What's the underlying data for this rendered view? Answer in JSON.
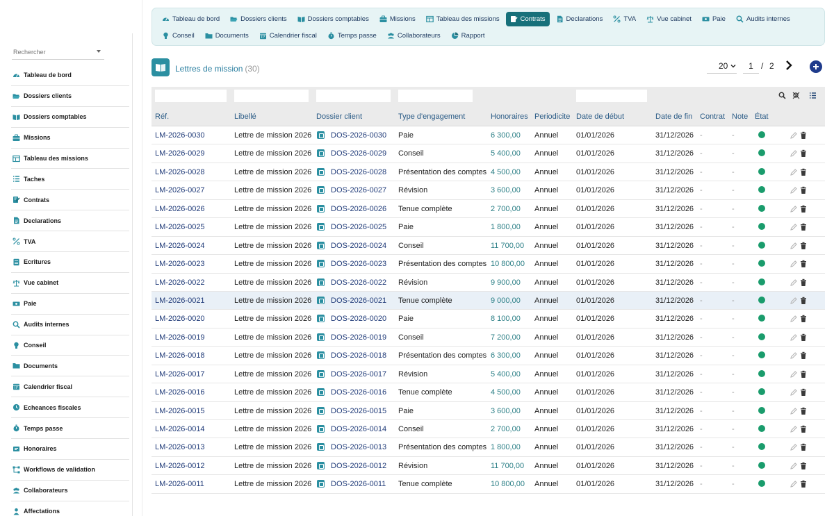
{
  "sidebar": {
    "search_placeholder": "Rechercher",
    "items": [
      {
        "label": "Tableau de bord",
        "icon": "dashboard-icon"
      },
      {
        "label": "Dossiers clients",
        "icon": "folder-open-icon"
      },
      {
        "label": "Dossiers comptables",
        "icon": "book-open-icon"
      },
      {
        "label": "Missions",
        "icon": "briefcase-icon"
      },
      {
        "label": "Tableau des missions",
        "icon": "table-icon"
      },
      {
        "label": "Taches",
        "icon": "list-icon"
      },
      {
        "label": "Contrats",
        "icon": "contract-icon"
      },
      {
        "label": "Declarations",
        "icon": "document-icon"
      },
      {
        "label": "TVA",
        "icon": "percent-icon"
      },
      {
        "label": "Ecritures",
        "icon": "ledger-icon"
      },
      {
        "label": "Vue cabinet",
        "icon": "balance-icon"
      },
      {
        "label": "Paie",
        "icon": "money-icon"
      },
      {
        "label": "Audits internes",
        "icon": "search-icon"
      },
      {
        "label": "Conseil",
        "icon": "lightbulb-icon"
      },
      {
        "label": "Documents",
        "icon": "folder-icon"
      },
      {
        "label": "Calendrier fiscal",
        "icon": "calendar-icon"
      },
      {
        "label": "Echeances fiscales",
        "icon": "clock-icon"
      },
      {
        "label": "Temps passe",
        "icon": "stopwatch-icon"
      },
      {
        "label": "Honoraires",
        "icon": "fee-icon"
      },
      {
        "label": "Workflows de validation",
        "icon": "workflow-icon"
      },
      {
        "label": "Collaborateurs",
        "icon": "users-icon"
      },
      {
        "label": "Affectations",
        "icon": "user-icon"
      }
    ]
  },
  "topnav": {
    "row1": [
      {
        "label": "Tableau de bord",
        "icon": "dashboard-icon",
        "active": false
      },
      {
        "label": "Dossiers clients",
        "icon": "folder-open-icon",
        "active": false
      },
      {
        "label": "Dossiers comptables",
        "icon": "book-open-icon",
        "active": false
      },
      {
        "label": "Missions",
        "icon": "briefcase-icon",
        "active": false
      },
      {
        "label": "Tableau des missions",
        "icon": "table-icon",
        "active": false
      },
      {
        "label": "Contrats",
        "icon": "contract-icon",
        "active": true
      },
      {
        "label": "Declarations",
        "icon": "document-icon",
        "active": false
      },
      {
        "label": "TVA",
        "icon": "percent-icon",
        "active": false
      },
      {
        "label": "Vue cabinet",
        "icon": "balance-icon",
        "active": false
      },
      {
        "label": "Paie",
        "icon": "money-icon",
        "active": false
      },
      {
        "label": "Audits internes",
        "icon": "search-icon",
        "active": false
      }
    ],
    "row2": [
      {
        "label": "Conseil",
        "icon": "lightbulb-icon",
        "active": false
      },
      {
        "label": "Documents",
        "icon": "folder-icon",
        "active": false
      },
      {
        "label": "Calendrier fiscal",
        "icon": "calendar-icon",
        "active": false
      },
      {
        "label": "Temps passe",
        "icon": "stopwatch-icon",
        "active": false
      },
      {
        "label": "Collaborateurs",
        "icon": "users-icon",
        "active": false
      },
      {
        "label": "Rapport",
        "icon": "chart-pie-icon",
        "active": false
      }
    ]
  },
  "header": {
    "title": "Lettres de mission",
    "count": "(30)",
    "per_page": "20",
    "page_current": "1",
    "page_separator": "/",
    "page_total": "2"
  },
  "table": {
    "columns": [
      "Réf.",
      "Libellé",
      "Dossier client",
      "Type d'engagement",
      "Honoraires",
      "Periodicite",
      "Date de début",
      "Date de fin",
      "Contrat",
      "Note",
      "État"
    ],
    "rows": [
      {
        "ref": "LM-2026-0030",
        "libelle": "Lettre de mission 2026",
        "dossier": "DOS-2026-0030",
        "type": "Paie",
        "honoraires": "6 300,00",
        "periodicite": "Annuel",
        "debut": "01/01/2026",
        "fin": "31/12/2026",
        "contrat": "-",
        "note": "-"
      },
      {
        "ref": "LM-2026-0029",
        "libelle": "Lettre de mission 2026",
        "dossier": "DOS-2026-0029",
        "type": "Conseil",
        "honoraires": "5 400,00",
        "periodicite": "Annuel",
        "debut": "01/01/2026",
        "fin": "31/12/2026",
        "contrat": "-",
        "note": "-"
      },
      {
        "ref": "LM-2026-0028",
        "libelle": "Lettre de mission 2026",
        "dossier": "DOS-2026-0028",
        "type": "Présentation des comptes",
        "honoraires": "4 500,00",
        "periodicite": "Annuel",
        "debut": "01/01/2026",
        "fin": "31/12/2026",
        "contrat": "-",
        "note": "-"
      },
      {
        "ref": "LM-2026-0027",
        "libelle": "Lettre de mission 2026",
        "dossier": "DOS-2026-0027",
        "type": "Révision",
        "honoraires": "3 600,00",
        "periodicite": "Annuel",
        "debut": "01/01/2026",
        "fin": "31/12/2026",
        "contrat": "-",
        "note": "-"
      },
      {
        "ref": "LM-2026-0026",
        "libelle": "Lettre de mission 2026",
        "dossier": "DOS-2026-0026",
        "type": "Tenue complète",
        "honoraires": "2 700,00",
        "periodicite": "Annuel",
        "debut": "01/01/2026",
        "fin": "31/12/2026",
        "contrat": "-",
        "note": "-"
      },
      {
        "ref": "LM-2026-0025",
        "libelle": "Lettre de mission 2026",
        "dossier": "DOS-2026-0025",
        "type": "Paie",
        "honoraires": "1 800,00",
        "periodicite": "Annuel",
        "debut": "01/01/2026",
        "fin": "31/12/2026",
        "contrat": "-",
        "note": "-"
      },
      {
        "ref": "LM-2026-0024",
        "libelle": "Lettre de mission 2026",
        "dossier": "DOS-2026-0024",
        "type": "Conseil",
        "honoraires": "11 700,00",
        "periodicite": "Annuel",
        "debut": "01/01/2026",
        "fin": "31/12/2026",
        "contrat": "-",
        "note": "-"
      },
      {
        "ref": "LM-2026-0023",
        "libelle": "Lettre de mission 2026",
        "dossier": "DOS-2026-0023",
        "type": "Présentation des comptes",
        "honoraires": "10 800,00",
        "periodicite": "Annuel",
        "debut": "01/01/2026",
        "fin": "31/12/2026",
        "contrat": "-",
        "note": "-"
      },
      {
        "ref": "LM-2026-0022",
        "libelle": "Lettre de mission 2026",
        "dossier": "DOS-2026-0022",
        "type": "Révision",
        "honoraires": "9 900,00",
        "periodicite": "Annuel",
        "debut": "01/01/2026",
        "fin": "31/12/2026",
        "contrat": "-",
        "note": "-"
      },
      {
        "ref": "LM-2026-0021",
        "libelle": "Lettre de mission 2026",
        "dossier": "DOS-2026-0021",
        "type": "Tenue complète",
        "honoraires": "9 000,00",
        "periodicite": "Annuel",
        "debut": "01/01/2026",
        "fin": "31/12/2026",
        "contrat": "-",
        "note": "-",
        "highlight": true
      },
      {
        "ref": "LM-2026-0020",
        "libelle": "Lettre de mission 2026",
        "dossier": "DOS-2026-0020",
        "type": "Paie",
        "honoraires": "8 100,00",
        "periodicite": "Annuel",
        "debut": "01/01/2026",
        "fin": "31/12/2026",
        "contrat": "-",
        "note": "-"
      },
      {
        "ref": "LM-2026-0019",
        "libelle": "Lettre de mission 2026",
        "dossier": "DOS-2026-0019",
        "type": "Conseil",
        "honoraires": "7 200,00",
        "periodicite": "Annuel",
        "debut": "01/01/2026",
        "fin": "31/12/2026",
        "contrat": "-",
        "note": "-"
      },
      {
        "ref": "LM-2026-0018",
        "libelle": "Lettre de mission 2026",
        "dossier": "DOS-2026-0018",
        "type": "Présentation des comptes",
        "honoraires": "6 300,00",
        "periodicite": "Annuel",
        "debut": "01/01/2026",
        "fin": "31/12/2026",
        "contrat": "-",
        "note": "-"
      },
      {
        "ref": "LM-2026-0017",
        "libelle": "Lettre de mission 2026",
        "dossier": "DOS-2026-0017",
        "type": "Révision",
        "honoraires": "5 400,00",
        "periodicite": "Annuel",
        "debut": "01/01/2026",
        "fin": "31/12/2026",
        "contrat": "-",
        "note": "-"
      },
      {
        "ref": "LM-2026-0016",
        "libelle": "Lettre de mission 2026",
        "dossier": "DOS-2026-0016",
        "type": "Tenue complète",
        "honoraires": "4 500,00",
        "periodicite": "Annuel",
        "debut": "01/01/2026",
        "fin": "31/12/2026",
        "contrat": "-",
        "note": "-"
      },
      {
        "ref": "LM-2026-0015",
        "libelle": "Lettre de mission 2026",
        "dossier": "DOS-2026-0015",
        "type": "Paie",
        "honoraires": "3 600,00",
        "periodicite": "Annuel",
        "debut": "01/01/2026",
        "fin": "31/12/2026",
        "contrat": "-",
        "note": "-"
      },
      {
        "ref": "LM-2026-0014",
        "libelle": "Lettre de mission 2026",
        "dossier": "DOS-2026-0014",
        "type": "Conseil",
        "honoraires": "2 700,00",
        "periodicite": "Annuel",
        "debut": "01/01/2026",
        "fin": "31/12/2026",
        "contrat": "-",
        "note": "-"
      },
      {
        "ref": "LM-2026-0013",
        "libelle": "Lettre de mission 2026",
        "dossier": "DOS-2026-0013",
        "type": "Présentation des comptes",
        "honoraires": "1 800,00",
        "periodicite": "Annuel",
        "debut": "01/01/2026",
        "fin": "31/12/2026",
        "contrat": "-",
        "note": "-"
      },
      {
        "ref": "LM-2026-0012",
        "libelle": "Lettre de mission 2026",
        "dossier": "DOS-2026-0012",
        "type": "Révision",
        "honoraires": "11 700,00",
        "periodicite": "Annuel",
        "debut": "01/01/2026",
        "fin": "31/12/2026",
        "contrat": "-",
        "note": "-"
      },
      {
        "ref": "LM-2026-0011",
        "libelle": "Lettre de mission 2026",
        "dossier": "DOS-2026-0011",
        "type": "Tenue complète",
        "honoraires": "10 800,00",
        "periodicite": "Annuel",
        "debut": "01/01/2026",
        "fin": "31/12/2026",
        "contrat": "-",
        "note": "-"
      }
    ]
  },
  "colors": {
    "accent": "#17707a",
    "icon_teal": "#2b8fa1",
    "nav_background": "#e7f4f5",
    "status_green": "#1a9c6c",
    "add_button": "#1f3b8c"
  }
}
